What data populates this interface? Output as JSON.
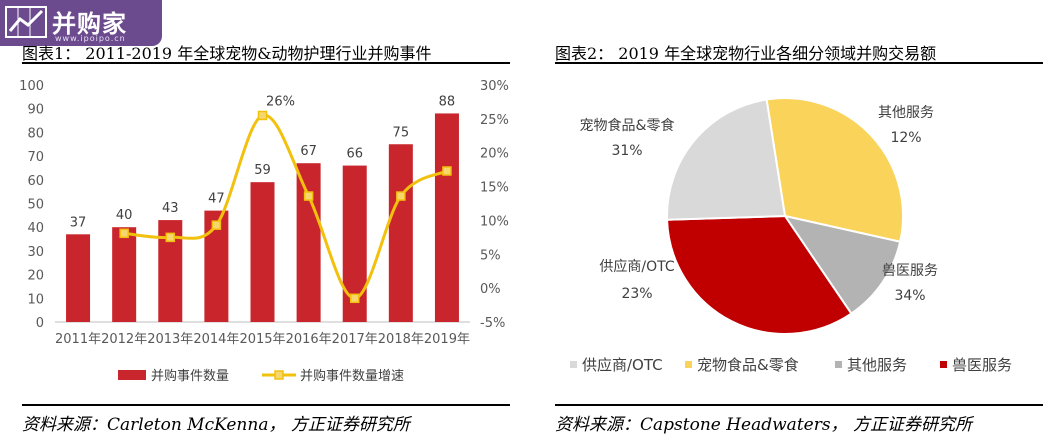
{
  "watermark": {
    "text": "并购家",
    "url": "www.ipoipo.cn"
  },
  "left_panel": {
    "title": "图表1： 2011-2019 年全球宠物&动物护理行业并购事件",
    "source": "资料来源：Carleton McKenna， 方正证券研究所"
  },
  "right_panel": {
    "title": "图表2： 2019 年全球宠物行业各细分领域并购交易额",
    "source": "资料来源：Capstone Headwaters， 方正证券研究所"
  },
  "chart_data": [
    {
      "type": "bar",
      "categories": [
        "2011年",
        "2012年",
        "2013年",
        "2014年",
        "2015年",
        "2016年",
        "2017年",
        "2018年",
        "2019年"
      ],
      "series": [
        {
          "name": "并购事件数量",
          "type": "bar",
          "axis": "left",
          "color": "#c9252c",
          "values": [
            37,
            40,
            43,
            47,
            59,
            67,
            66,
            75,
            88
          ]
        },
        {
          "name": "并购事件数量增速",
          "type": "line",
          "axis": "right",
          "color": "#f2c10e",
          "values": [
            null,
            8.1,
            7.5,
            9.3,
            25.5,
            13.6,
            -1.5,
            13.6,
            17.3
          ],
          "labeled_point": {
            "index": 4,
            "label": "26%"
          }
        }
      ],
      "y_left": {
        "ylim": [
          0,
          100
        ],
        "ticks": [
          "0",
          "10",
          "20",
          "30",
          "40",
          "50",
          "60",
          "70",
          "80",
          "90",
          "100"
        ]
      },
      "y_right": {
        "ylim": [
          -5,
          30
        ],
        "ticks": [
          "-5%",
          "0%",
          "5%",
          "10%",
          "15%",
          "20%",
          "25%",
          "30%"
        ]
      },
      "grid": false,
      "legend_position": "bottom"
    },
    {
      "type": "pie",
      "categories": [
        "供应商/OTC",
        "宠物食品&零食",
        "其他服务",
        "兽医服务"
      ],
      "values": [
        23,
        31,
        12,
        34
      ],
      "labels": [
        "23%",
        "31%",
        "12%",
        "34%"
      ],
      "colors": [
        "#d9d9d9",
        "#f9d35a",
        "#b3b3b3",
        "#c00000"
      ],
      "legend_position": "bottom"
    }
  ]
}
